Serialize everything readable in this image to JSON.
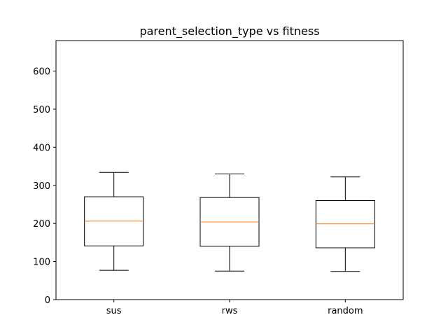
{
  "chart_data": {
    "type": "box",
    "title": "parent_selection_type vs fitness",
    "xlabel": "",
    "ylabel": "",
    "categories": [
      "sus",
      "rws",
      "random"
    ],
    "boxes": [
      {
        "label": "sus",
        "whisker_low": 77,
        "q1": 141,
        "median": 206,
        "q3": 270,
        "whisker_high": 334
      },
      {
        "label": "rws",
        "whisker_low": 75,
        "q1": 140,
        "median": 204,
        "q3": 268,
        "whisker_high": 330
      },
      {
        "label": "random",
        "whisker_low": 74,
        "q1": 136,
        "median": 199,
        "q3": 260,
        "whisker_high": 322
      }
    ],
    "ylim": [
      0,
      680
    ],
    "yticks": [
      0,
      100,
      200,
      300,
      400,
      500,
      600
    ],
    "grid": false,
    "legend": "none",
    "colors": {
      "box": "#000000",
      "median": "#ff7f0e",
      "axes": "#000000"
    }
  }
}
